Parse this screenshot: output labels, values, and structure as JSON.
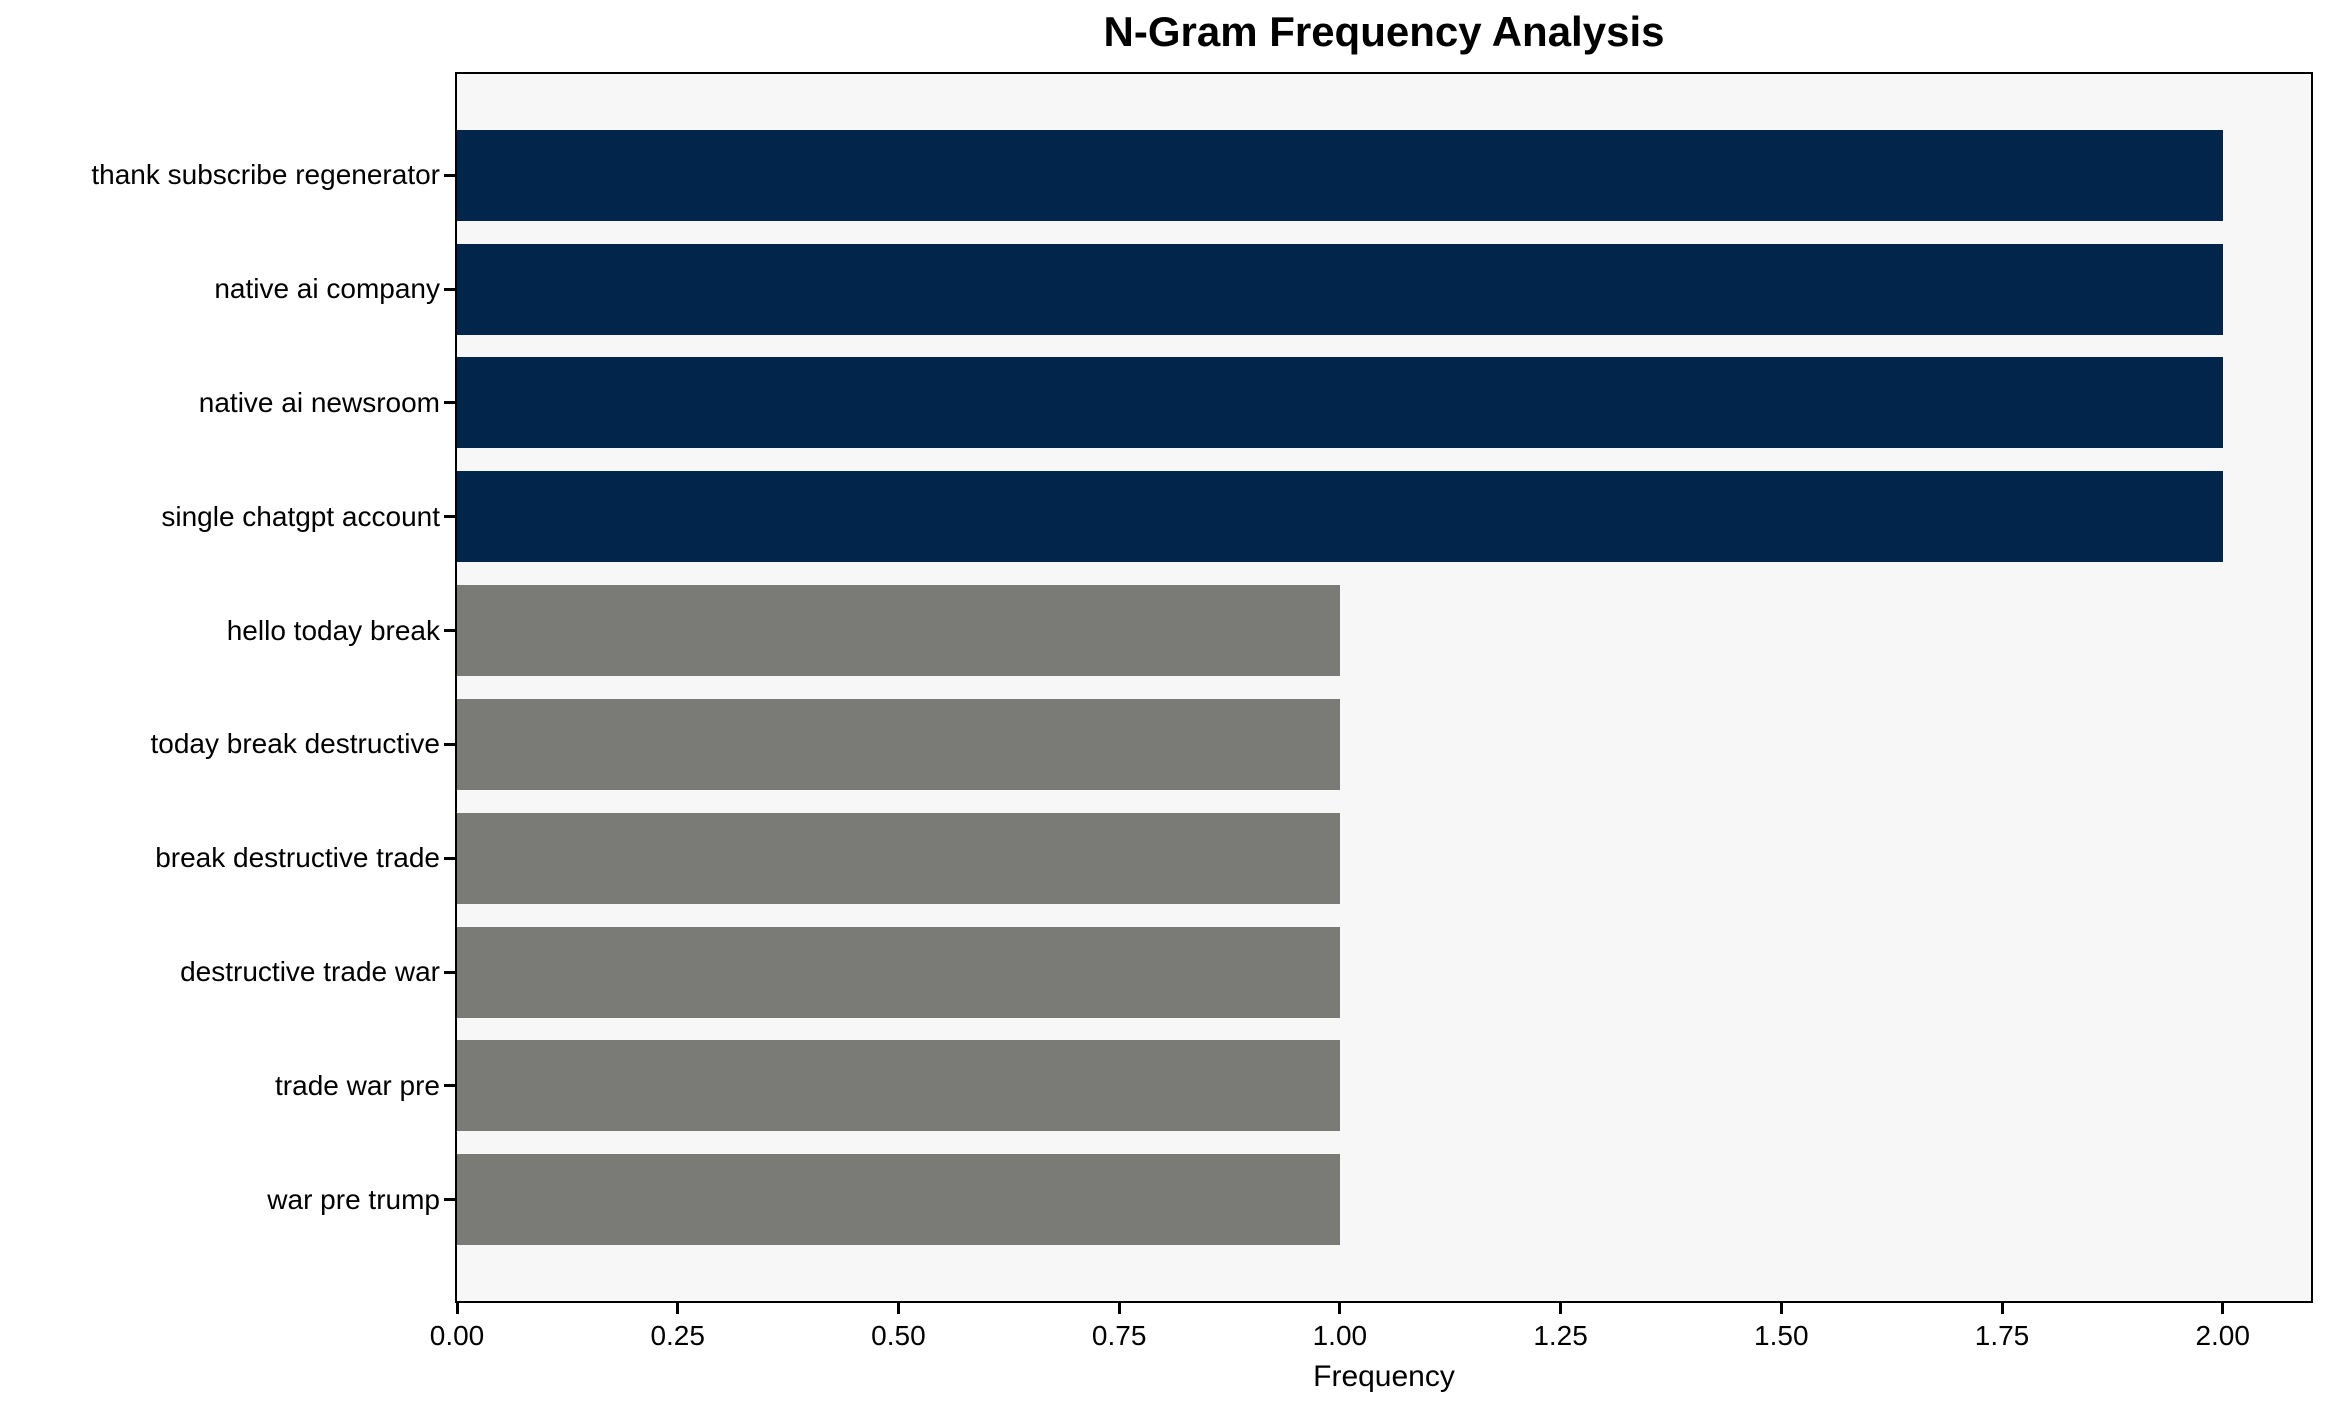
{
  "chart_data": {
    "type": "bar",
    "orientation": "horizontal",
    "title": "N-Gram Frequency Analysis",
    "xlabel": "Frequency",
    "ylabel": "",
    "categories": [
      "thank subscribe regenerator",
      "native ai company",
      "native ai newsroom",
      "single chatgpt account",
      "hello today break",
      "today break destructive",
      "break destructive trade",
      "destructive trade war",
      "trade war pre",
      "war pre trump"
    ],
    "values": [
      2,
      2,
      2,
      2,
      1,
      1,
      1,
      1,
      1,
      1
    ],
    "bar_colors": [
      "#02254c",
      "#02254c",
      "#02254c",
      "#02254c",
      "#7a7a76",
      "#7a7a76",
      "#7a7a76",
      "#7a7a76",
      "#7a7a76",
      "#7a7a76"
    ],
    "xlim": [
      0,
      2.1
    ],
    "xticks": [
      0,
      0.25,
      0.5,
      0.75,
      1.0,
      1.25,
      1.5,
      1.75,
      2.0
    ],
    "xtick_labels": [
      "0.00",
      "0.25",
      "0.50",
      "0.75",
      "1.00",
      "1.25",
      "1.50",
      "1.75",
      "2.00"
    ],
    "grid": false,
    "legend": null,
    "colors": {
      "plot_background": "#f7f7f7",
      "figure_background": "#ffffff",
      "spine": "#000000",
      "bar_high": "#02254c",
      "bar_low": "#7a7a76"
    }
  }
}
